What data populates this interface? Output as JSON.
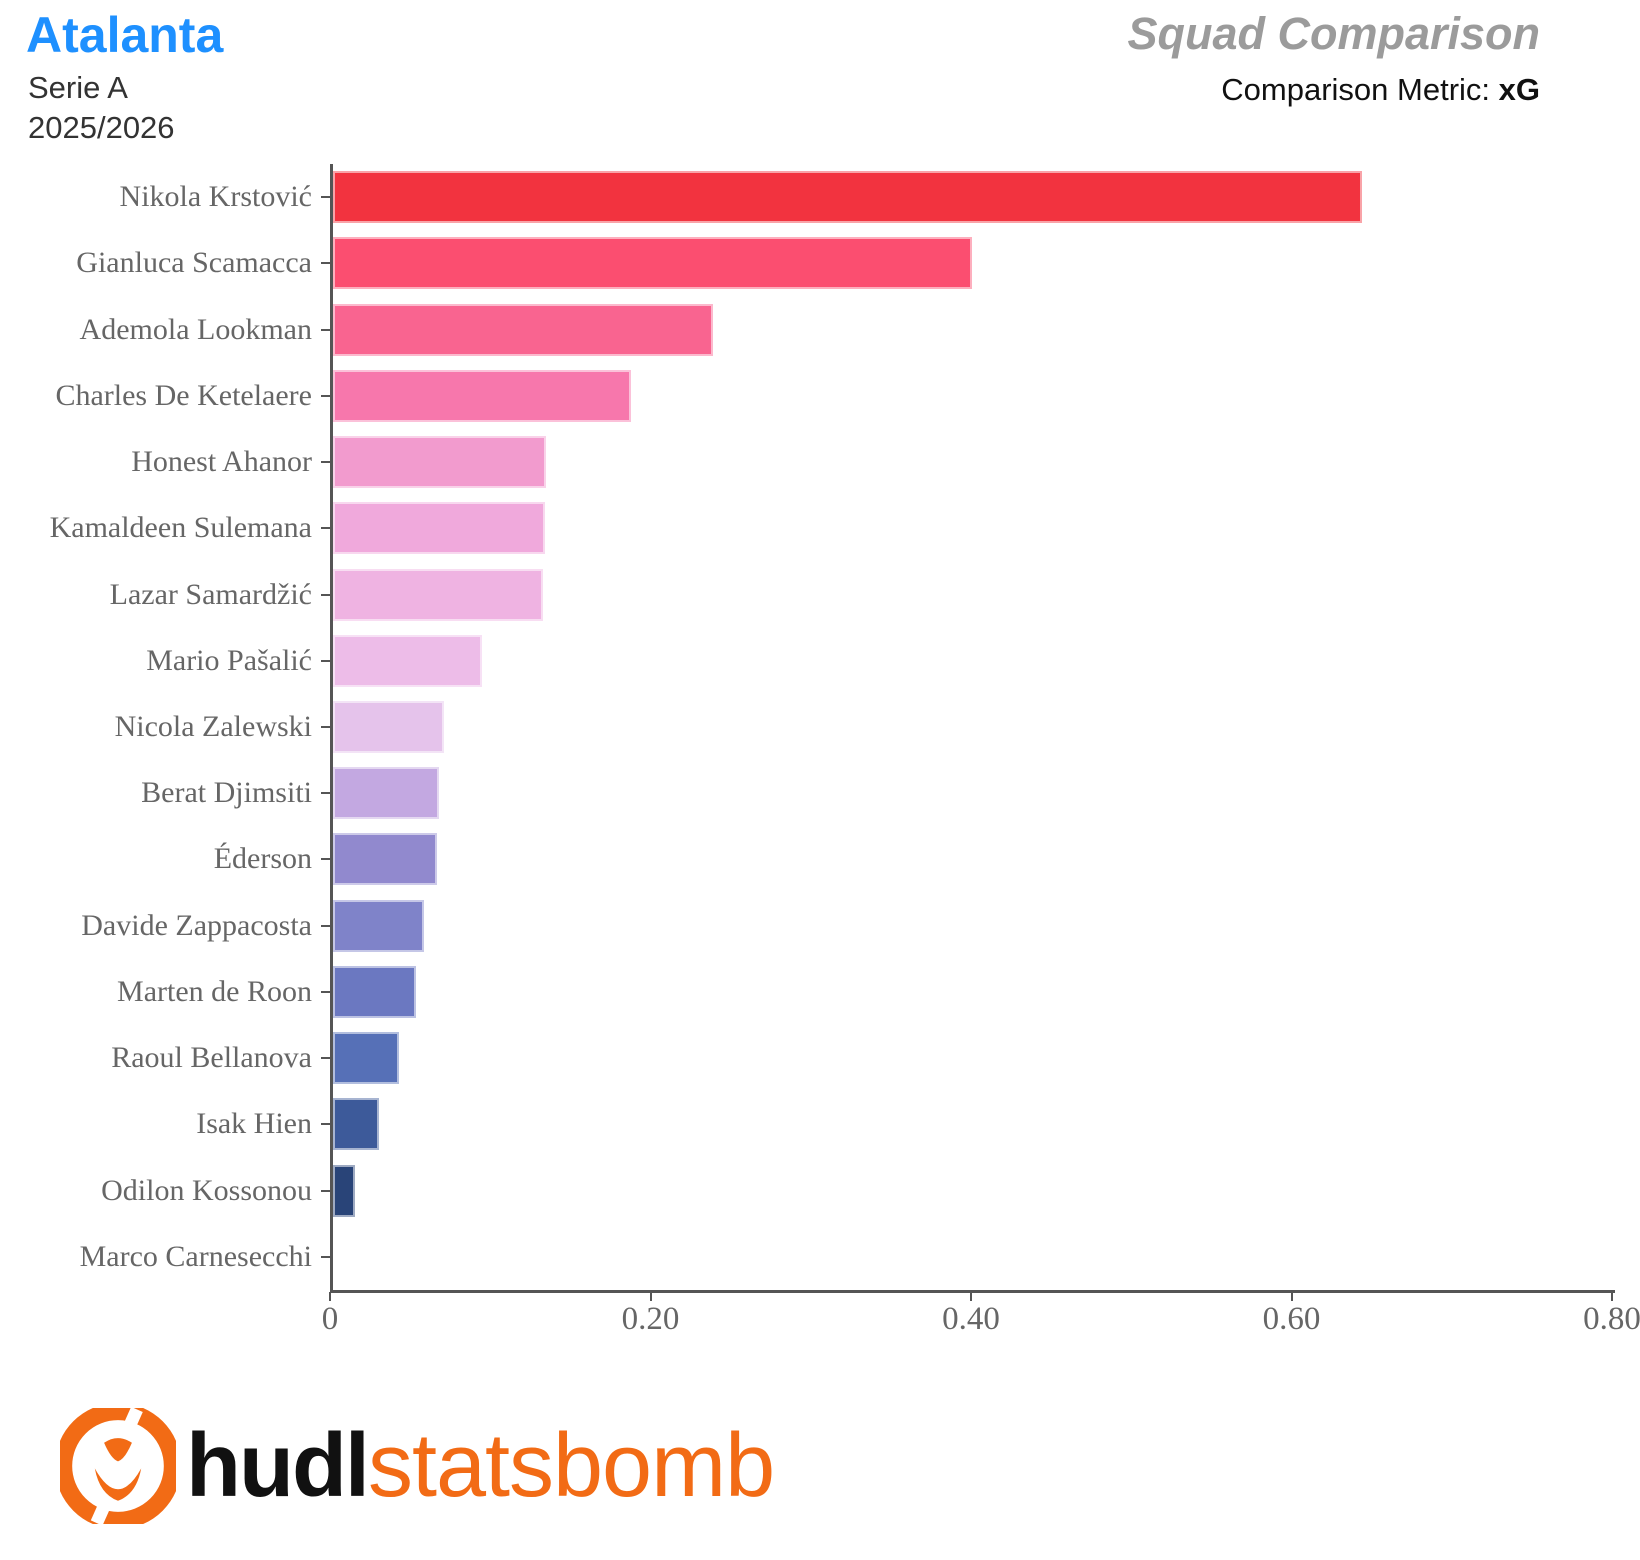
{
  "header": {
    "team": "Atalanta",
    "league": "Serie A",
    "season": "2025/2026",
    "report_title": "Squad Comparison",
    "metric_label": "Comparison Metric: ",
    "metric_value": "xG",
    "team_color": "#1E90FF",
    "report_title_color": "#9B9B9B"
  },
  "chart_data": {
    "type": "bar",
    "orientation": "horizontal",
    "title": "Squad Comparison",
    "metric": "xG",
    "xlabel": "",
    "ylabel": "",
    "xlim": [
      0,
      0.8
    ],
    "grid": false,
    "axis_color": "#555555",
    "label_color": "#666666",
    "x_ticks": [
      {
        "value": 0.0,
        "label": "0"
      },
      {
        "value": 0.2,
        "label": "0.20"
      },
      {
        "value": 0.4,
        "label": "0.40"
      },
      {
        "value": 0.6,
        "label": "0.60"
      },
      {
        "value": 0.8,
        "label": "0.80"
      }
    ],
    "players": [
      {
        "name": "Nikola Krstović",
        "value": 0.642,
        "color": "#F2333F"
      },
      {
        "name": "Gianluca Scamacca",
        "value": 0.399,
        "color": "#FB4E70"
      },
      {
        "name": "Ademola Lookman",
        "value": 0.237,
        "color": "#F96490"
      },
      {
        "name": "Charles De Ketelaere",
        "value": 0.186,
        "color": "#F777AC"
      },
      {
        "name": "Honest Ahanor",
        "value": 0.133,
        "color": "#F29BCE"
      },
      {
        "name": "Kamaldeen Sulemana",
        "value": 0.132,
        "color": "#F0A9DC"
      },
      {
        "name": "Lazar Samardžić",
        "value": 0.131,
        "color": "#EFB3E2"
      },
      {
        "name": "Mario Pašalić",
        "value": 0.093,
        "color": "#EDBCE8"
      },
      {
        "name": "Nicola Zalewski",
        "value": 0.069,
        "color": "#E5C3EB"
      },
      {
        "name": "Berat Djimsiti",
        "value": 0.066,
        "color": "#C3A8E1"
      },
      {
        "name": "Éderson",
        "value": 0.065,
        "color": "#9189CE"
      },
      {
        "name": "Davide Zappacosta",
        "value": 0.057,
        "color": "#7F83C9"
      },
      {
        "name": "Marten de Roon",
        "value": 0.052,
        "color": "#6B78C1"
      },
      {
        "name": "Raoul Bellanova",
        "value": 0.041,
        "color": "#5670B7"
      },
      {
        "name": "Isak Hien",
        "value": 0.029,
        "color": "#3D5A9A"
      },
      {
        "name": "Odilon Kossonou",
        "value": 0.014,
        "color": "#294478"
      },
      {
        "name": "Marco Carnesecchi",
        "value": 0.0,
        "color": "#1F3A6E"
      }
    ]
  },
  "footer": {
    "brand_bold": "hudl",
    "brand_light": "statsbomb",
    "brand_orange": "#F26B15"
  }
}
